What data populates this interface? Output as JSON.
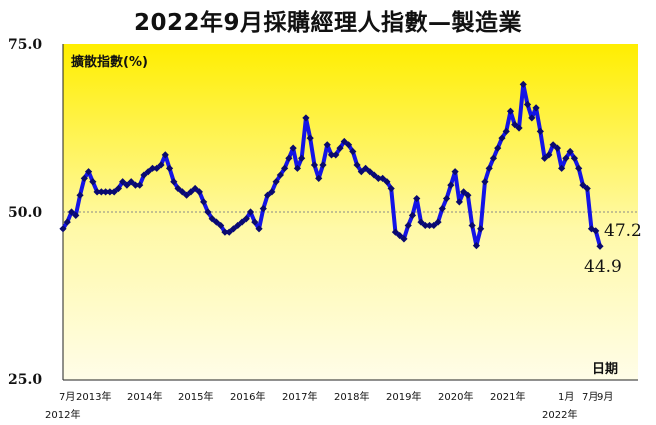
{
  "title": "2022年9月採購經理人指數—製造業",
  "ylabel": "擴散指數(%)",
  "xlabel": "日期",
  "yticks": [
    "75.0",
    "50.0",
    "25.0"
  ],
  "xticks_top": [
    "7月",
    "2013年",
    "2014年",
    "2015年",
    "2016年",
    "2017年",
    "2018年",
    "2019年",
    "2020年",
    "2021年",
    "1月",
    "7月",
    "9月"
  ],
  "xticks_bottom": [
    "2012年",
    "2022年"
  ],
  "annotations": [
    "47.2",
    "44.9"
  ],
  "colors": {
    "line": "#1414e6",
    "marker": "#0a0a6e",
    "bg_top": "#ffee00",
    "bg_bottom": "#fffde8",
    "ref_line": "#888888"
  },
  "chart_data": {
    "type": "line",
    "title": "2022年9月採購經理人指數—製造業",
    "ylabel": "擴散指數(%)",
    "xlabel": "日期",
    "ylim": [
      25,
      75
    ],
    "reference_line": 50,
    "x_start": "2012-07",
    "x_end": "2022-09",
    "series": [
      {
        "values": [
          47.5,
          48.5,
          50,
          49.5,
          52.5,
          55,
          56,
          54.5,
          53,
          53,
          53,
          53,
          53,
          53.5,
          54.5,
          54,
          54.5,
          54,
          54,
          55.5,
          56,
          56.5,
          56.5,
          57,
          58.5,
          56.5,
          54.5,
          53.5,
          53,
          52.5,
          53,
          53.5,
          53,
          51.5,
          50,
          49,
          48.5,
          48,
          47,
          47,
          47.5,
          48,
          48.5,
          49,
          50,
          48.5,
          47.5,
          50.5,
          52.5,
          53,
          54.5,
          55.5,
          56.5,
          58,
          59.5,
          56.5,
          58,
          64,
          61,
          57,
          55,
          57,
          60,
          58.5,
          58.5,
          59.5,
          60.5,
          60,
          59,
          57,
          56,
          56.5,
          56,
          55.5,
          55,
          55,
          54.5,
          53.5,
          47,
          46.5,
          46,
          48,
          49.5,
          52,
          48.5,
          48,
          48,
          48,
          48.5,
          50.5,
          52,
          54,
          56,
          51.5,
          53,
          52.5,
          48,
          45,
          47.5,
          54.5,
          56.5,
          58,
          59.5,
          61,
          62,
          65,
          63,
          62.5,
          69,
          66,
          64,
          65.5,
          62,
          58,
          58.5,
          60,
          59.5,
          56.5,
          58,
          59,
          58,
          56.5,
          54,
          53.5,
          47.5,
          47.2,
          44.9
        ]
      }
    ]
  }
}
